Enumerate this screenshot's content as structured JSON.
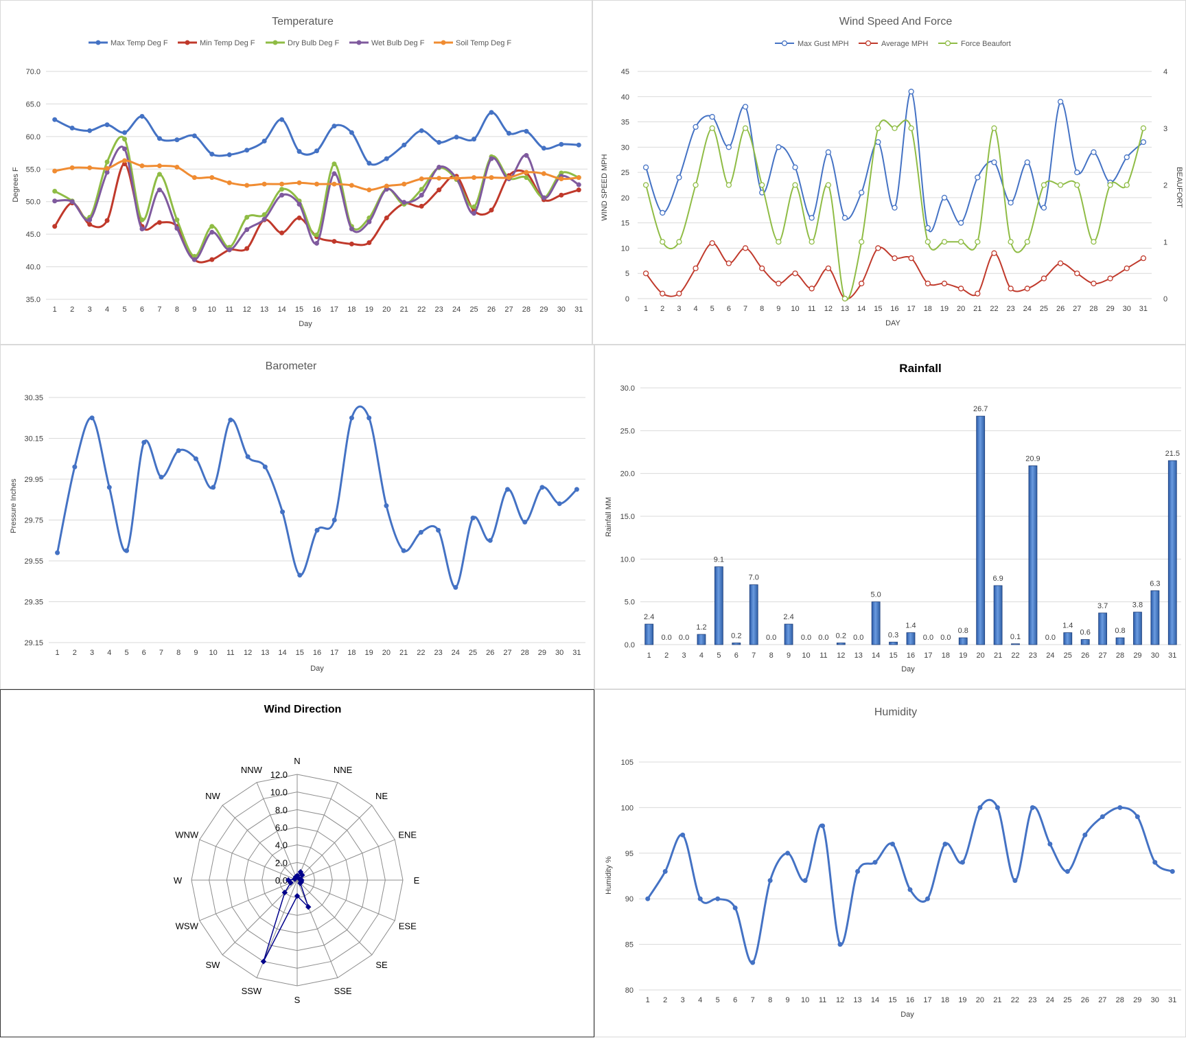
{
  "days": [
    1,
    2,
    3,
    4,
    5,
    6,
    7,
    8,
    9,
    10,
    11,
    12,
    13,
    14,
    15,
    16,
    17,
    18,
    19,
    20,
    21,
    22,
    23,
    24,
    25,
    26,
    27,
    28,
    29,
    30,
    31
  ],
  "charts": {
    "temperature": {
      "title": "Temperature",
      "xlabel": "Day",
      "ylabel": "Degrees F",
      "ylim": [
        35,
        70
      ],
      "yticks": [
        "35.0",
        "40.0",
        "45.0",
        "50.0",
        "55.0",
        "60.0",
        "65.0",
        "70.0"
      ],
      "legend_position": "top",
      "series": [
        {
          "name": "Max Temp Deg F",
          "color": "#4472c4",
          "values": [
            62.6,
            61.3,
            60.9,
            61.8,
            60.6,
            63.1,
            59.7,
            59.5,
            60.1,
            57.3,
            57.2,
            57.9,
            59.3,
            62.6,
            57.7,
            57.8,
            61.6,
            60.6,
            55.9,
            56.6,
            58.7,
            60.9,
            59.1,
            59.9,
            59.6,
            63.7,
            60.5,
            60.8,
            58.2,
            58.8,
            58.7
          ]
        },
        {
          "name": "Min Temp Deg F",
          "color": "#c0392b",
          "values": [
            46.2,
            49.8,
            46.5,
            47.1,
            55.8,
            46.2,
            46.8,
            46.2,
            41.1,
            41.1,
            42.6,
            42.8,
            47.2,
            45.2,
            47.5,
            44.6,
            43.9,
            43.5,
            43.7,
            47.5,
            49.7,
            49.3,
            51.8,
            53.9,
            48.6,
            48.7,
            54.0,
            54.4,
            50.3,
            51.0,
            51.8
          ]
        },
        {
          "name": "Dry Bulb Deg F",
          "color": "#8fbc45",
          "values": [
            51.6,
            50.1,
            47.6,
            56.1,
            59.6,
            47.2,
            54.2,
            47.2,
            41.6,
            46.2,
            43.0,
            47.6,
            48.0,
            51.9,
            50.1,
            44.9,
            55.8,
            46.2,
            47.5,
            52.0,
            49.6,
            51.9,
            55.2,
            53.4,
            49.2,
            56.9,
            53.6,
            53.7,
            50.6,
            54.4,
            53.7
          ]
        },
        {
          "name": "Wet Bulb Deg F",
          "color": "#7f5a9e",
          "values": [
            50.1,
            50.0,
            47.2,
            54.5,
            58.1,
            45.8,
            51.8,
            45.9,
            41.1,
            45.3,
            42.6,
            45.7,
            47.3,
            51.0,
            49.6,
            43.6,
            54.3,
            45.8,
            46.9,
            51.9,
            49.9,
            51.0,
            55.3,
            53.6,
            48.2,
            56.6,
            53.5,
            57.1,
            50.6,
            53.9,
            52.6
          ]
        },
        {
          "name": "Soil Temp Deg F",
          "color": "#f08c32",
          "values": [
            54.7,
            55.2,
            55.2,
            55.1,
            56.3,
            55.5,
            55.5,
            55.3,
            53.7,
            53.7,
            52.9,
            52.5,
            52.7,
            52.7,
            52.9,
            52.7,
            52.7,
            52.5,
            51.8,
            52.4,
            52.7,
            53.5,
            53.6,
            53.6,
            53.7,
            53.7,
            53.7,
            54.5,
            54.3,
            53.5,
            53.7
          ]
        }
      ]
    },
    "wind": {
      "title": "Wind Speed And Force",
      "xlabel": "DAY",
      "ylabel": "WIND SPEED MPH",
      "y2label": "BEAUFORT",
      "ylim": [
        0,
        45
      ],
      "y2lim": [
        0,
        4
      ],
      "yticks": [
        "0",
        "5",
        "10",
        "15",
        "20",
        "25",
        "30",
        "35",
        "40",
        "45"
      ],
      "y2ticks": [
        "0",
        "1",
        "2",
        "3",
        "4"
      ],
      "legend_position": "top",
      "series": [
        {
          "name": "Max Gust MPH",
          "color": "#4472c4",
          "axis": "left",
          "values": [
            26,
            17,
            24,
            34,
            36,
            30,
            38,
            21,
            30,
            26,
            16,
            29,
            16,
            21,
            31,
            18,
            41,
            14,
            20,
            15,
            24,
            27,
            19,
            27,
            18,
            39,
            25,
            29,
            23,
            28,
            31
          ]
        },
        {
          "name": "Average MPH",
          "color": "#c0392b",
          "axis": "left",
          "values": [
            5,
            1,
            1,
            6,
            11,
            7,
            10,
            6,
            3,
            5,
            2,
            6,
            0,
            3,
            10,
            8,
            8,
            3,
            3,
            2,
            1,
            9,
            2,
            2,
            4,
            7,
            5,
            3,
            4,
            6,
            8
          ]
        },
        {
          "name": "Force Beaufort",
          "color": "#8fbc45",
          "axis": "right",
          "values": [
            2,
            1,
            1,
            2,
            3,
            2,
            3,
            2,
            1,
            2,
            1,
            2,
            0,
            1,
            3,
            3,
            3,
            1,
            1,
            1,
            1,
            3,
            1,
            1,
            2,
            2,
            2,
            1,
            2,
            2,
            3
          ]
        }
      ]
    },
    "barometer": {
      "title": "Barometer",
      "xlabel": "Day",
      "ylabel": "Pressure Inches",
      "ylim": [
        29.15,
        30.35
      ],
      "yticks": [
        "29.15",
        "29.35",
        "29.55",
        "29.75",
        "29.95",
        "30.15",
        "30.35"
      ],
      "series": [
        {
          "name": "Pressure",
          "color": "#4472c4",
          "values": [
            29.59,
            30.01,
            30.25,
            29.91,
            29.6,
            30.13,
            29.96,
            30.09,
            30.05,
            29.91,
            30.24,
            30.06,
            30.01,
            29.79,
            29.48,
            29.7,
            29.75,
            30.25,
            30.25,
            29.82,
            29.6,
            29.69,
            29.7,
            29.42,
            29.76,
            29.65,
            29.9,
            29.74,
            29.91,
            29.83,
            29.9
          ]
        }
      ]
    },
    "rainfall": {
      "title": "Rainfall",
      "xlabel": "Day",
      "ylabel": "Rainfall MM",
      "ylim": [
        0,
        30
      ],
      "yticks": [
        "0.0",
        "5.0",
        "10.0",
        "15.0",
        "20.0",
        "25.0",
        "30.0"
      ],
      "color": "#4472c4",
      "values": [
        2.4,
        0.0,
        0.0,
        1.2,
        9.1,
        0.2,
        7.0,
        0.0,
        2.4,
        0.0,
        0.0,
        0.2,
        0.0,
        5.0,
        0.3,
        1.4,
        0.0,
        0.0,
        0.8,
        26.7,
        6.9,
        0.1,
        20.9,
        0.0,
        1.4,
        0.6,
        3.7,
        0.8,
        3.8,
        6.3,
        21.5
      ],
      "labels": [
        "2.4",
        "0.0",
        "0.0",
        "1.2",
        "9.1",
        "0.2",
        "7.0",
        "0.0",
        "2.4",
        "0.0",
        "0.0",
        "0.2",
        "0.0",
        "5.0",
        "0.3",
        "1.4",
        "0.0",
        "0.0",
        "0.8",
        "26.7",
        "6.9",
        "0.1",
        "20.9",
        "0.0",
        "1.4",
        "0.6",
        "3.7",
        "0.8",
        "3.8",
        "6.3",
        "21.5"
      ]
    },
    "wind_direction": {
      "title": "Wind Direction",
      "type": "radar",
      "directions": [
        "N",
        "NNE",
        "NE",
        "ENE",
        "E",
        "ESE",
        "SE",
        "SSE",
        "S",
        "SSW",
        "SW",
        "WSW",
        "W",
        "WNW",
        "NW",
        "NNW"
      ],
      "rticks": [
        "0.0",
        "2.0",
        "4.0",
        "6.0",
        "8.0",
        "10.0",
        "12.0"
      ],
      "rmax": 12,
      "color": "#00008b",
      "values": [
        0.5,
        1.0,
        0.8,
        0.3,
        0.5,
        0.5,
        0.5,
        3.3,
        1.8,
        10.0,
        2.0,
        0.8,
        1.0,
        0.3,
        0.3,
        0.4
      ]
    },
    "humidity": {
      "title": "Humidity",
      "xlabel": "Day",
      "ylabel": "Humidity %",
      "ylim": [
        80,
        105
      ],
      "yticks": [
        "80",
        "85",
        "90",
        "95",
        "100",
        "105"
      ],
      "series": [
        {
          "name": "Humidity",
          "color": "#4472c4",
          "values": [
            90,
            93,
            97,
            90,
            90,
            89,
            83,
            92,
            95,
            92,
            98,
            85,
            93,
            94,
            96,
            91,
            90,
            96,
            94,
            100,
            100,
            92,
            100,
            96,
            93,
            97,
            99,
            100,
            99,
            94,
            93
          ]
        }
      ]
    }
  }
}
